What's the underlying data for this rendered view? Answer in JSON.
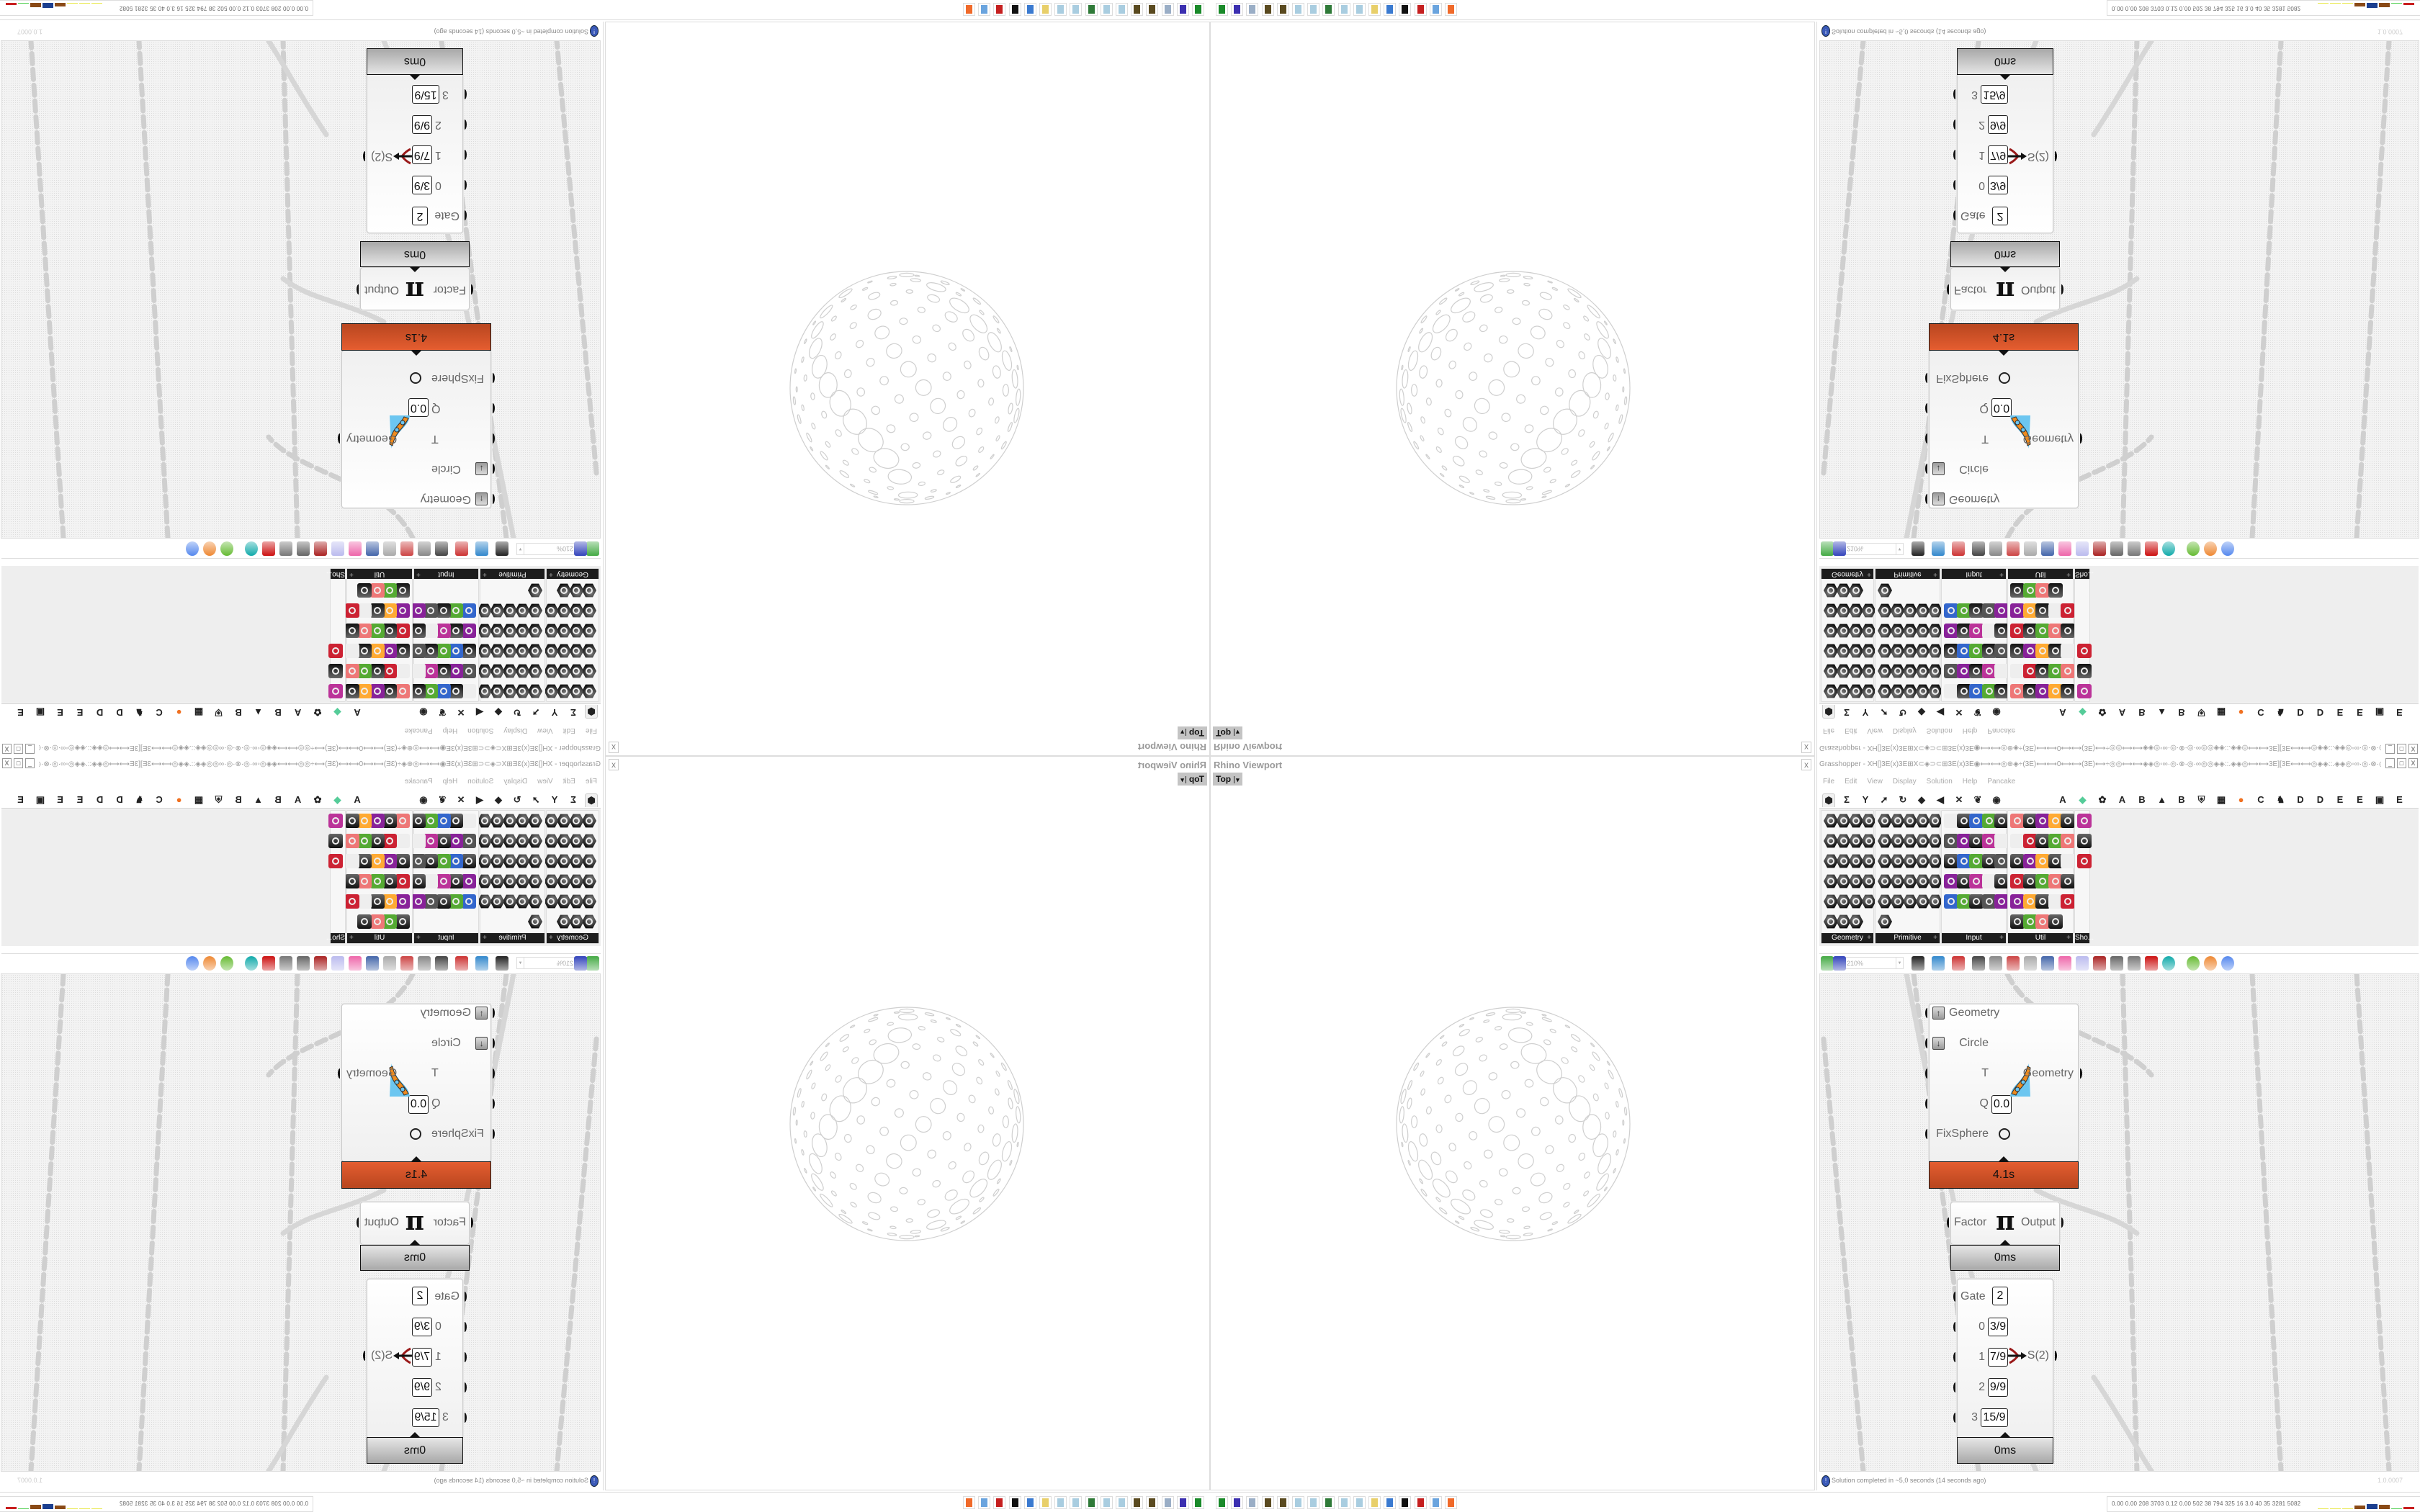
{
  "rhino_viewport": {
    "title": "Rhino Viewport",
    "close_label": "x",
    "view_name": "Top",
    "view_dropdown": "▾"
  },
  "grasshopper": {
    "title": "Grasshopper - XH[]3E(x)3E⊞X⊂◈⊃⊂⊞3E(x)3E◉⟷⟷◎⊕◈÷(3E)⟷⟷0⟷⟷(3E)⟷÷◎◎⟷⟷◈◈◎◦∞·◎·⊗·◎·∞◎◎◈◈::.◈◈◎⟷⟷3E][3E⟷⟷◎◈◈::.◈◈◎◦∞·◎·⊗·◎·∞◎◎◈◈⟷⟷◎◎÷(3E)⟷⟷0⟷⟷…",
    "window_buttons": [
      "_",
      "□",
      "X"
    ],
    "menu": [
      "File",
      "Edit",
      "View",
      "Display",
      "Solution",
      "Help",
      "Pancake"
    ],
    "tabs": [
      {
        "icon": "params-icon",
        "glyph": "⬢"
      },
      {
        "icon": "maths-icon",
        "glyph": "Σ"
      },
      {
        "icon": "sets-icon",
        "glyph": "Y"
      },
      {
        "icon": "vector-icon",
        "glyph": "➚"
      },
      {
        "icon": "curve-icon",
        "glyph": "↻"
      },
      {
        "icon": "surface-icon",
        "glyph": "◆"
      },
      {
        "icon": "mesh-icon",
        "glyph": "◀"
      },
      {
        "icon": "intersect-icon",
        "glyph": "✕"
      },
      {
        "icon": "transform-icon",
        "glyph": "❦"
      },
      {
        "icon": "display-icon",
        "glyph": "◉"
      },
      {
        "icon": "tab-a",
        "glyph": "A"
      },
      {
        "icon": "crystal-icon",
        "glyph": "◆"
      },
      {
        "icon": "puzzle-icon",
        "glyph": "✿"
      },
      {
        "icon": "tab-a2",
        "glyph": "A"
      },
      {
        "icon": "tab-b",
        "glyph": "B"
      },
      {
        "icon": "landscape-icon",
        "glyph": "▲"
      },
      {
        "icon": "tab-b2",
        "glyph": "B"
      },
      {
        "icon": "shield-icon",
        "glyph": "⛨"
      },
      {
        "icon": "grid-icon",
        "glyph": "▦"
      },
      {
        "icon": "orange-circle-icon",
        "glyph": "●"
      },
      {
        "icon": "tab-c",
        "glyph": "C"
      },
      {
        "icon": "rooster-icon",
        "glyph": "♞"
      },
      {
        "icon": "tab-d",
        "glyph": "D"
      },
      {
        "icon": "tab-d2",
        "glyph": "D"
      },
      {
        "icon": "tab-e",
        "glyph": "E"
      },
      {
        "icon": "tab-e2",
        "glyph": "E"
      },
      {
        "icon": "dotted-square-icon",
        "glyph": "▣"
      },
      {
        "icon": "tab-e3",
        "glyph": "E"
      }
    ],
    "panels": [
      {
        "label": "Geometry",
        "style": "hex",
        "cols": 4,
        "icons": [
          "shape",
          "line",
          "plane",
          "spiral",
          "cross",
          "box-outline",
          "brep",
          "pulse",
          "arrow",
          "diamond",
          "text-tag",
          "wave",
          "circle",
          "box",
          "field",
          "dots",
          "arc",
          "surface",
          "map",
          "group",
          "mesh",
          "ball",
          "magnet"
        ]
      },
      {
        "label": "Primitive",
        "style": "hex",
        "cols": 5,
        "icons": [
          "droplet",
          "star",
          "matrix",
          "angle",
          "pipe",
          "path",
          "stripes",
          "time",
          "hand",
          "zoom",
          "sample",
          "unicode",
          "hatch",
          "bag",
          "seven",
          "plus",
          "tree",
          "shape",
          "decimal",
          "hash",
          "complex",
          "file",
          "letter",
          "id",
          "sphere",
          "arc"
        ]
      },
      {
        "label": "Input",
        "style": "sq",
        "cols": 5,
        "icons": [
          "import",
          "black-square",
          "gem",
          "3dm",
          "link",
          "gradient-yellow",
          "vector-xyz",
          "drip",
          "xyz",
          "toggle",
          "slider",
          "color-wheel",
          "img",
          "button",
          "checker",
          "graph",
          "pdb",
          "sketch",
          "calendar",
          "image-sample",
          "shp",
          "list",
          "clock",
          "swatch",
          "id-tag"
        ]
      },
      {
        "label": "Util",
        "style": "sq",
        "cols": 5,
        "icons": [
          "cherry",
          "horseshoe",
          "arrow-right",
          "c-script",
          "a-script",
          "play",
          "record",
          "magnifier",
          "spiral",
          "lens",
          "axes",
          "pencil",
          "stopwatch",
          "seven",
          "flask",
          "tree",
          "filter",
          "egg",
          "curve",
          "fx",
          "ring",
          "rotate",
          "premiere",
          "decimal",
          "palette",
          "abc",
          "arrow-fat",
          "gauge",
          "x-box"
        ]
      },
      {
        "label": "Sho...",
        "style": "sq",
        "cols": 1,
        "icons": [
          "goggles",
          "goggles-2",
          "presentation"
        ]
      }
    ],
    "toolbar": {
      "zoom_value": "210%",
      "icons": [
        "new-file-icon",
        "save-icon",
        "zoom-extents-icon",
        "eye-icon",
        "sketch-icon",
        "canvas-icon",
        "at-icon",
        "gha-icon",
        "window-icon",
        "search-icon",
        "package-icon",
        "bulb-icon",
        "wire-icon",
        "lamp-icon",
        "cylinder-icon",
        "red-box-icon",
        "teal-icon",
        "green-icon",
        "orange-sphere-icon",
        "blue-sphere-icon"
      ]
    },
    "components": {
      "kangaroo": {
        "inputs": [
          "Geometry",
          "Circle",
          "T",
          "Q",
          "FixSphere"
        ],
        "q_value": "0.0",
        "output": "Geometry",
        "timing": "4.1s",
        "color": "#d9552b"
      },
      "pi": {
        "input": "Factor",
        "symbol": "π",
        "output": "Output",
        "timing": "0ms"
      },
      "stream_gate": {
        "gate_label": "Gate",
        "gate_value": "2",
        "rows": [
          {
            "index": "0",
            "value": "3/9"
          },
          {
            "index": "1",
            "value": "7/9"
          },
          {
            "index": "2",
            "value": "9/9"
          },
          {
            "index": "3",
            "value": "15/9"
          }
        ],
        "output": "S(2)",
        "timing": "0ms"
      }
    },
    "status": {
      "message": "Solution completed in ~5,0 seconds (14 seconds ago)",
      "version": "1.0.0007"
    }
  },
  "system_readout": "0.00 0.00  208  3703 0.12  0.00  502   38   794  325   16   3.0   40   35  3281 5082",
  "taskbar": [
    {
      "icon": "terminal-icon",
      "color": "#1a8a2a"
    },
    {
      "icon": "floppy-64-icon",
      "color": "#3b2fb0"
    },
    {
      "icon": "document-icon",
      "color": "#9aaec6"
    },
    {
      "icon": "cog-icon",
      "color": "#5a4a20"
    },
    {
      "icon": "cog-icon",
      "color": "#5a4a20"
    },
    {
      "icon": "notepad-icon",
      "color": "#a9cde0"
    },
    {
      "icon": "notepad-icon",
      "color": "#a9cde0"
    },
    {
      "icon": "monitor-icon",
      "color": "#2f7a38"
    },
    {
      "icon": "notepad-icon",
      "color": "#a9cde0"
    },
    {
      "icon": "notepad-icon",
      "color": "#a9cde0"
    },
    {
      "icon": "folder-icon",
      "color": "#e8cf6a"
    },
    {
      "icon": "contact-card-icon",
      "color": "#3a7ad0"
    },
    {
      "icon": "rhino-icon",
      "color": "#111111"
    },
    {
      "icon": "settings-red-icon",
      "color": "#c51f1f"
    },
    {
      "icon": "calculator-icon",
      "color": "#6aa4de"
    },
    {
      "icon": "firefox-icon",
      "color": "#f06a2a"
    }
  ],
  "meter_colors": [
    "#e8e84a",
    "#e8e84a",
    "#e8e84a",
    "#8a4a16",
    "#1c3f8f",
    "#8a4a16",
    "#4fcf4f",
    "#c81f1f"
  ]
}
